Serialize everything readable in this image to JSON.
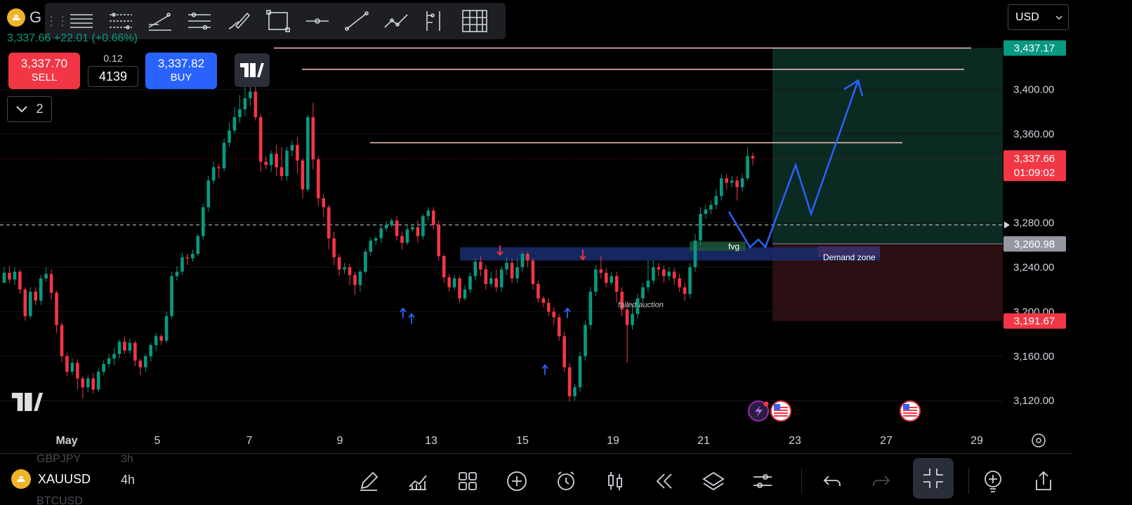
{
  "toolbar": {
    "tools": [
      "grip-icon",
      "horizontal-lines-icon",
      "parallel-channel-icon",
      "trend-angle-icon",
      "fib-lines-icon",
      "brush-icon",
      "rectangle-icon",
      "horizontal-ray-icon",
      "trend-line-icon",
      "path-icon",
      "long-position-icon",
      "grid-icon"
    ]
  },
  "symbol": {
    "letter": "G",
    "price_change": "3,337.66 +22.01 (+0.66%)"
  },
  "trade": {
    "sell_price": "3,337.70",
    "sell_label": "SELL",
    "spread": "0.12",
    "quantity": "4139",
    "buy_price": "3,337.82",
    "buy_label": "BUY"
  },
  "indicators_collapse_count": "2",
  "currency": "USD",
  "chart_data": {
    "type": "candlestick",
    "price_axis": {
      "ticks": [
        "3,400.00",
        "3,360.00",
        "3,280.00",
        "3,240.00",
        "3,200.00",
        "3,160.00",
        "3,120.00"
      ],
      "range": [
        3105,
        3440
      ]
    },
    "time_axis": {
      "ticks": [
        "May",
        "5",
        "7",
        "9",
        "13",
        "15",
        "19",
        "21",
        "23",
        "27",
        "29"
      ]
    },
    "price_labels": {
      "target": "3,437.17",
      "last_price": "3,337.66",
      "countdown": "01:09:02",
      "entry": "3,260.98",
      "stop": "3,191.67"
    },
    "annotations": {
      "demand_zone": "Demand zone",
      "fvg": "fvg",
      "failed_auction": "failed auction"
    },
    "colors": {
      "up": "#089981",
      "down": "#f23645",
      "projection": "#2962ff",
      "zone": "#1a2d6e",
      "resistance": "#f7c6c6",
      "profit_area": "#0b2a22",
      "loss_area": "#2b0e12"
    },
    "candles": [
      [
        3226,
        3235,
        3228,
        3240
      ],
      [
        3235,
        3229,
        3226,
        3241
      ],
      [
        3229,
        3236,
        3224,
        3240
      ],
      [
        3236,
        3220,
        3216,
        3238
      ],
      [
        3220,
        3196,
        3192,
        3222
      ],
      [
        3196,
        3218,
        3194,
        3222
      ],
      [
        3218,
        3210,
        3206,
        3222
      ],
      [
        3210,
        3230,
        3206,
        3233
      ],
      [
        3230,
        3234,
        3227,
        3240
      ],
      [
        3234,
        3217,
        3211,
        3238
      ],
      [
        3217,
        3188,
        3181,
        3219
      ],
      [
        3188,
        3160,
        3155,
        3190
      ],
      [
        3160,
        3146,
        3142,
        3163
      ],
      [
        3146,
        3154,
        3143,
        3158
      ],
      [
        3154,
        3140,
        3130,
        3157
      ],
      [
        3140,
        3132,
        3122,
        3142
      ],
      [
        3132,
        3140,
        3128,
        3143
      ],
      [
        3140,
        3130,
        3126,
        3145
      ],
      [
        3130,
        3146,
        3128,
        3149
      ],
      [
        3146,
        3153,
        3143,
        3156
      ],
      [
        3153,
        3158,
        3150,
        3162
      ],
      [
        3158,
        3162,
        3152,
        3167
      ],
      [
        3162,
        3173,
        3158,
        3175
      ],
      [
        3173,
        3165,
        3162,
        3178
      ],
      [
        3165,
        3172,
        3162,
        3176
      ],
      [
        3172,
        3156,
        3151,
        3174
      ],
      [
        3156,
        3150,
        3143,
        3158
      ],
      [
        3150,
        3160,
        3146,
        3162
      ],
      [
        3160,
        3170,
        3155,
        3172
      ],
      [
        3170,
        3178,
        3165,
        3181
      ],
      [
        3178,
        3174,
        3170,
        3180
      ],
      [
        3174,
        3196,
        3172,
        3200
      ],
      [
        3196,
        3232,
        3194,
        3236
      ],
      [
        3232,
        3236,
        3228,
        3241
      ],
      [
        3236,
        3249,
        3233,
        3253
      ],
      [
        3249,
        3248,
        3242,
        3252
      ],
      [
        3248,
        3252,
        3245,
        3256
      ],
      [
        3252,
        3268,
        3250,
        3270
      ],
      [
        3268,
        3294,
        3265,
        3297
      ],
      [
        3294,
        3318,
        3290,
        3322
      ],
      [
        3318,
        3330,
        3315,
        3335
      ],
      [
        3330,
        3329,
        3320,
        3333
      ],
      [
        3329,
        3352,
        3326,
        3356
      ],
      [
        3352,
        3363,
        3348,
        3370
      ],
      [
        3363,
        3375,
        3360,
        3384
      ],
      [
        3375,
        3382,
        3370,
        3395
      ],
      [
        3382,
        3392,
        3376,
        3402
      ],
      [
        3392,
        3398,
        3385,
        3418
      ],
      [
        3398,
        3375,
        3372,
        3412
      ],
      [
        3375,
        3335,
        3326,
        3378
      ],
      [
        3335,
        3332,
        3328,
        3340
      ],
      [
        3332,
        3342,
        3326,
        3345
      ],
      [
        3342,
        3330,
        3322,
        3350
      ],
      [
        3330,
        3322,
        3318,
        3348
      ],
      [
        3322,
        3345,
        3318,
        3348
      ],
      [
        3345,
        3350,
        3340,
        3354
      ],
      [
        3350,
        3336,
        3324,
        3357
      ],
      [
        3336,
        3310,
        3302,
        3338
      ],
      [
        3310,
        3375,
        3308,
        3377
      ],
      [
        3375,
        3337,
        3328,
        3388
      ],
      [
        3337,
        3302,
        3295,
        3340
      ],
      [
        3302,
        3294,
        3285,
        3306
      ],
      [
        3294,
        3266,
        3256,
        3296
      ],
      [
        3266,
        3249,
        3242,
        3272
      ],
      [
        3249,
        3238,
        3232,
        3252
      ],
      [
        3238,
        3240,
        3234,
        3244
      ],
      [
        3240,
        3233,
        3224,
        3243
      ],
      [
        3233,
        3224,
        3215,
        3236
      ],
      [
        3224,
        3236,
        3218,
        3238
      ],
      [
        3236,
        3254,
        3234,
        3256
      ],
      [
        3254,
        3264,
        3250,
        3267
      ],
      [
        3264,
        3266,
        3260,
        3268
      ],
      [
        3266,
        3275,
        3262,
        3278
      ],
      [
        3275,
        3278,
        3272,
        3282
      ],
      [
        3278,
        3282,
        3276,
        3284
      ],
      [
        3282,
        3268,
        3264,
        3286
      ],
      [
        3268,
        3262,
        3256,
        3272
      ],
      [
        3262,
        3274,
        3260,
        3277
      ],
      [
        3274,
        3276,
        3272,
        3279
      ],
      [
        3276,
        3268,
        3262,
        3282
      ],
      [
        3268,
        3286,
        3265,
        3288
      ],
      [
        3286,
        3291,
        3282,
        3294
      ],
      [
        3291,
        3278,
        3274,
        3294
      ],
      [
        3278,
        3250,
        3246,
        3282
      ],
      [
        3250,
        3231,
        3226,
        3252
      ],
      [
        3231,
        3222,
        3218,
        3234
      ],
      [
        3222,
        3230,
        3219,
        3233
      ],
      [
        3230,
        3212,
        3208,
        3232
      ],
      [
        3212,
        3220,
        3210,
        3224
      ],
      [
        3220,
        3232,
        3217,
        3235
      ],
      [
        3232,
        3245,
        3228,
        3248
      ],
      [
        3245,
        3238,
        3232,
        3250
      ],
      [
        3238,
        3225,
        3220,
        3242
      ],
      [
        3225,
        3230,
        3222,
        3236
      ],
      [
        3230,
        3222,
        3218,
        3238
      ],
      [
        3222,
        3238,
        3218,
        3241
      ],
      [
        3238,
        3244,
        3233,
        3249
      ],
      [
        3244,
        3230,
        3226,
        3248
      ],
      [
        3230,
        3240,
        3226,
        3248
      ],
      [
        3240,
        3252,
        3236,
        3254
      ],
      [
        3252,
        3246,
        3240,
        3254
      ],
      [
        3246,
        3225,
        3220,
        3248
      ],
      [
        3225,
        3212,
        3208,
        3228
      ],
      [
        3212,
        3208,
        3204,
        3214
      ],
      [
        3208,
        3200,
        3196,
        3212
      ],
      [
        3200,
        3195,
        3188,
        3204
      ],
      [
        3195,
        3178,
        3174,
        3198
      ],
      [
        3178,
        3150,
        3146,
        3182
      ],
      [
        3150,
        3124,
        3119,
        3154
      ],
      [
        3124,
        3132,
        3120,
        3135
      ],
      [
        3132,
        3160,
        3128,
        3164
      ],
      [
        3160,
        3188,
        3156,
        3192
      ],
      [
        3188,
        3218,
        3184,
        3222
      ],
      [
        3218,
        3238,
        3214,
        3242
      ],
      [
        3238,
        3235,
        3230,
        3250
      ],
      [
        3235,
        3226,
        3222,
        3239
      ],
      [
        3226,
        3232,
        3224,
        3236
      ],
      [
        3232,
        3218,
        3208,
        3236
      ],
      [
        3218,
        3202,
        3196,
        3222
      ],
      [
        3202,
        3188,
        3154,
        3206
      ],
      [
        3188,
        3198,
        3184,
        3206
      ],
      [
        3198,
        3212,
        3194,
        3216
      ],
      [
        3212,
        3222,
        3208,
        3226
      ],
      [
        3222,
        3228,
        3218,
        3246
      ],
      [
        3228,
        3240,
        3225,
        3246
      ],
      [
        3240,
        3238,
        3232,
        3244
      ],
      [
        3238,
        3232,
        3226,
        3242
      ],
      [
        3232,
        3236,
        3228,
        3240
      ],
      [
        3236,
        3230,
        3224,
        3239
      ],
      [
        3230,
        3222,
        3218,
        3234
      ],
      [
        3222,
        3216,
        3210,
        3226
      ],
      [
        3216,
        3240,
        3212,
        3244
      ],
      [
        3240,
        3264,
        3236,
        3270
      ],
      [
        3264,
        3288,
        3260,
        3294
      ],
      [
        3288,
        3292,
        3284,
        3296
      ],
      [
        3292,
        3296,
        3288,
        3300
      ],
      [
        3296,
        3304,
        3292,
        3310
      ],
      [
        3304,
        3320,
        3300,
        3324
      ],
      [
        3320,
        3316,
        3310,
        3324
      ],
      [
        3316,
        3318,
        3312,
        3322
      ],
      [
        3318,
        3312,
        3300,
        3322
      ],
      [
        3312,
        3320,
        3308,
        3324
      ],
      [
        3320,
        3340,
        3318,
        3348
      ],
      [
        3340,
        3338,
        3332,
        3343
      ]
    ],
    "resistance_levels": [
      3437.17,
      3418,
      3352
    ],
    "entry_level": 3260.98,
    "target_level": 3437.17,
    "stop_level": 3191.67,
    "demand_zone": [
      3246,
      3258
    ],
    "projection_path": [
      [
        3302,
        3258
      ],
      [
        3330,
        3275
      ],
      [
        3342,
        3258
      ],
      [
        3378,
        3328
      ],
      [
        3398,
        3286
      ],
      [
        3430,
        3415
      ],
      [
        3440,
        3403
      ],
      [
        3430,
        3415
      ],
      [
        3446,
        3400
      ]
    ]
  },
  "bottom": {
    "ghost_top_ticker": "GBPJPY",
    "ghost_top_tf": "3h",
    "symbol_name": "XAUUSD",
    "timeframe": "4h",
    "ghost_bottom_ticker": "BTCUSD",
    "icons": [
      "draw-icon",
      "indicators-icon",
      "templates-icon",
      "add-icon",
      "alert-icon",
      "chart-type-icon",
      "replay-icon",
      "layers-icon",
      "settings-icon",
      "undo-icon",
      "redo-icon",
      "fullscreen-exit-icon",
      "ideas-icon",
      "share-icon"
    ]
  }
}
